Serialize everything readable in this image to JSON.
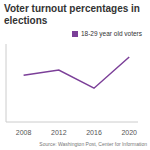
{
  "chart_data": {
    "type": "line",
    "title": "Voter turnout percentages in elections",
    "x": [
      2008,
      2012,
      2016,
      2020
    ],
    "series": [
      {
        "name": "18-29 year old voters",
        "color": "#7b3f98",
        "values": [
          48,
          50,
          43,
          55
        ]
      }
    ],
    "xlim": [
      2006,
      2021
    ],
    "xticks": [
      2008,
      2012,
      2016,
      2020
    ],
    "ylim": [
      30,
      60
    ],
    "tick_labels": "x",
    "legend": "upper right",
    "source": "Source: Washington Post, Center for Information"
  }
}
